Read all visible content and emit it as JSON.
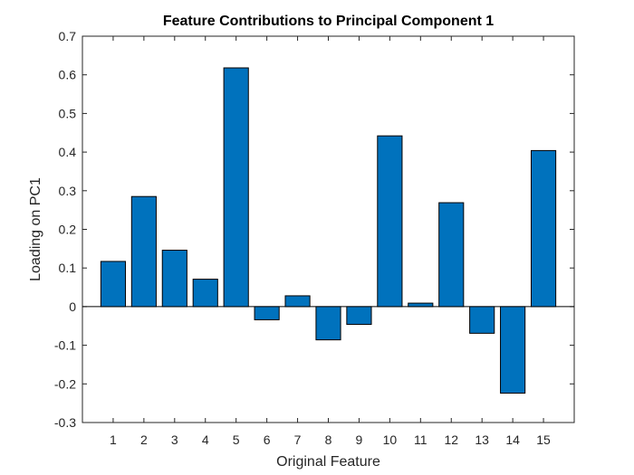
{
  "chart_data": {
    "type": "bar",
    "title": "Feature Contributions to Principal Component 1",
    "xlabel": "Original Feature",
    "ylabel": "Loading on PC1",
    "categories": [
      "1",
      "2",
      "3",
      "4",
      "5",
      "6",
      "7",
      "8",
      "9",
      "10",
      "11",
      "12",
      "13",
      "14",
      "15"
    ],
    "values": [
      0.117,
      0.285,
      0.146,
      0.071,
      0.618,
      -0.034,
      0.028,
      -0.086,
      -0.046,
      0.442,
      0.009,
      0.269,
      -0.069,
      -0.224,
      0.404
    ],
    "ylim": [
      -0.3,
      0.7
    ],
    "yticks": [
      "-0.3",
      "-0.2",
      "-0.1",
      "0",
      "0.1",
      "0.2",
      "0.3",
      "0.4",
      "0.5",
      "0.6",
      "0.7"
    ],
    "bar_color": "#0072BD",
    "bar_edge_color": "#000000",
    "grid": false,
    "box": true
  }
}
